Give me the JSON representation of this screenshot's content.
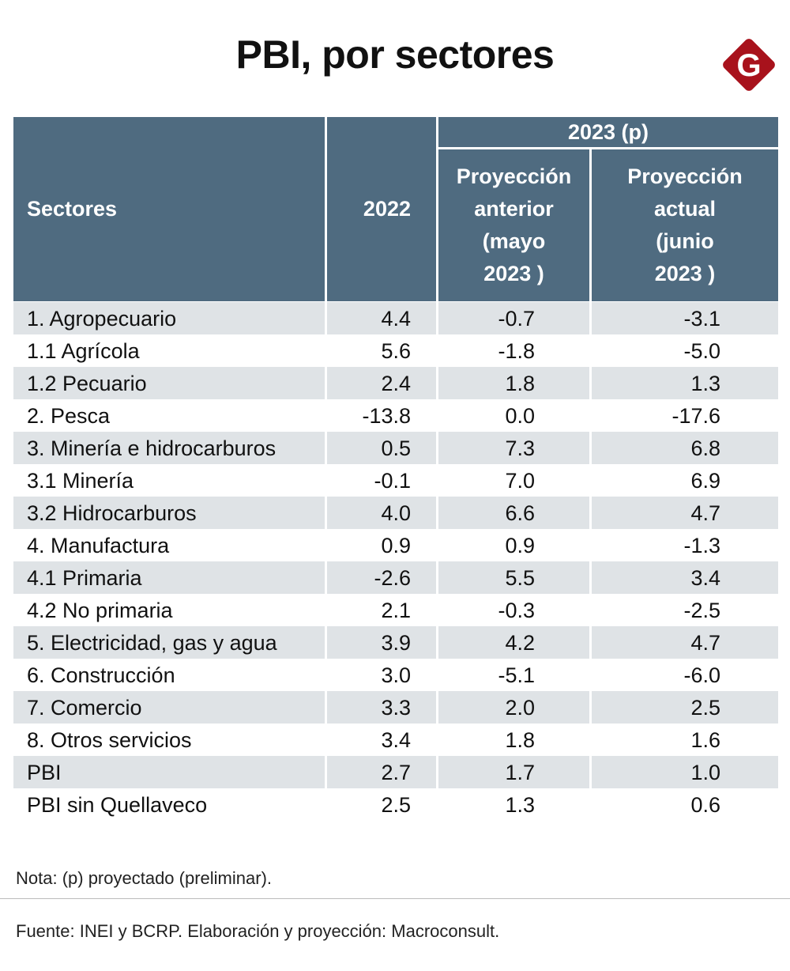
{
  "title": "PBI, por sectores",
  "logo": {
    "text": "G",
    "color": "#a8121c"
  },
  "colors": {
    "header": "#4f6b80",
    "stripe": "#dfe3e6"
  },
  "chart_data": {
    "type": "table",
    "title": "PBI, por sectores",
    "headers": {
      "sector": "Sectores",
      "y2022": "2022",
      "group": "2023 (p)",
      "prev": "Proyección anterior (mayo 2023 )",
      "curr": "Proyección actual (junio 2023 )"
    },
    "header_lines": {
      "prev": [
        "Proyección",
        "anterior",
        "(mayo",
        "2023 )"
      ],
      "curr": [
        "Proyección",
        "actual",
        "(junio",
        "2023 )"
      ]
    },
    "rows": [
      [
        "1. Agropecuario",
        "4.4",
        "-0.7",
        "-3.1"
      ],
      [
        "1.1 Agrícola",
        "5.6",
        "-1.8",
        "-5.0"
      ],
      [
        "1.2 Pecuario",
        "2.4",
        "1.8",
        "1.3"
      ],
      [
        "2. Pesca",
        "-13.8",
        "0.0",
        "-17.6"
      ],
      [
        "3. Minería e hidrocarburos",
        "0.5",
        "7.3",
        "6.8"
      ],
      [
        "3.1 Minería",
        "-0.1",
        "7.0",
        "6.9"
      ],
      [
        "3.2 Hidrocarburos",
        "4.0",
        "6.6",
        "4.7"
      ],
      [
        "4. Manufactura",
        "0.9",
        "0.9",
        "-1.3"
      ],
      [
        "4.1 Primaria",
        "-2.6",
        "5.5",
        "3.4"
      ],
      [
        "4.2 No primaria",
        "2.1",
        "-0.3",
        "-2.5"
      ],
      [
        "5. Electricidad, gas y agua",
        "3.9",
        "4.2",
        "4.7"
      ],
      [
        "6. Construcción",
        "3.0",
        "-5.1",
        "-6.0"
      ],
      [
        "7. Comercio",
        "3.3",
        "2.0",
        "2.5"
      ],
      [
        "8. Otros servicios",
        "3.4",
        "1.8",
        "1.6"
      ],
      [
        "PBI",
        "2.7",
        "1.7",
        "1.0"
      ],
      [
        "PBI sin Quellaveco",
        "2.5",
        "1.3",
        "0.6"
      ]
    ]
  },
  "note": "Nota: (p) proyectado (preliminar).",
  "source": "Fuente: INEI y BCRP. Elaboración y proyección: Macroconsult."
}
